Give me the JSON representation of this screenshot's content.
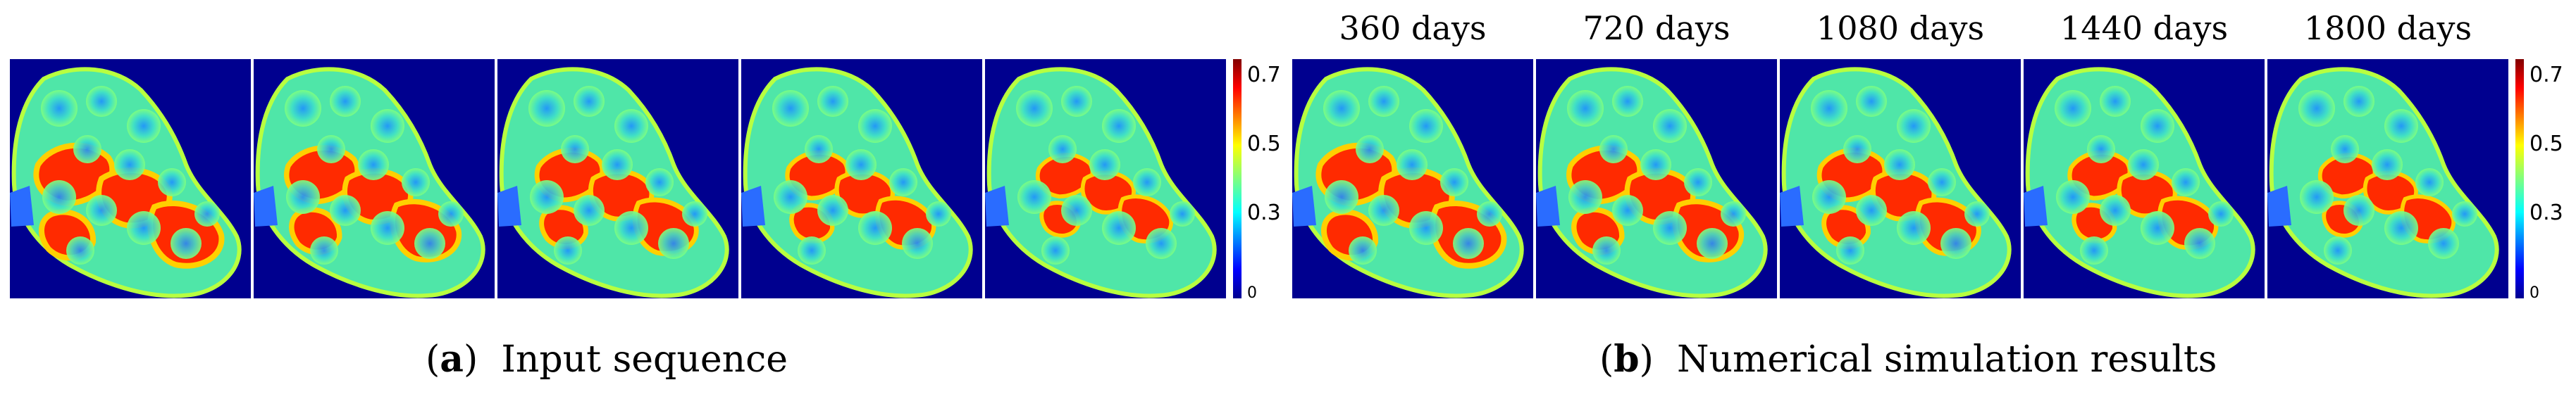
{
  "figure": {
    "panel_a": {
      "caption_letter": "a",
      "caption_text": "Input sequence",
      "frame_count": 5,
      "colorbar_ticks": [
        "0.7",
        "0.5",
        "0.3",
        "0"
      ]
    },
    "panel_b": {
      "caption_letter": "b",
      "caption_text": "Numerical simulation results",
      "frames": [
        {
          "label": "360 days"
        },
        {
          "label": "720 days"
        },
        {
          "label": "1080 days"
        },
        {
          "label": "1440 days"
        },
        {
          "label": "1800 days"
        }
      ],
      "colorbar_ticks": [
        "0.7",
        "0.5",
        "0.3",
        "0"
      ]
    },
    "colormap": [
      "#00008f",
      "#0000ff",
      "#00ffff",
      "#7fff7f",
      "#ffff00",
      "#ff0000",
      "#800000"
    ],
    "background_color": "#00008f"
  }
}
